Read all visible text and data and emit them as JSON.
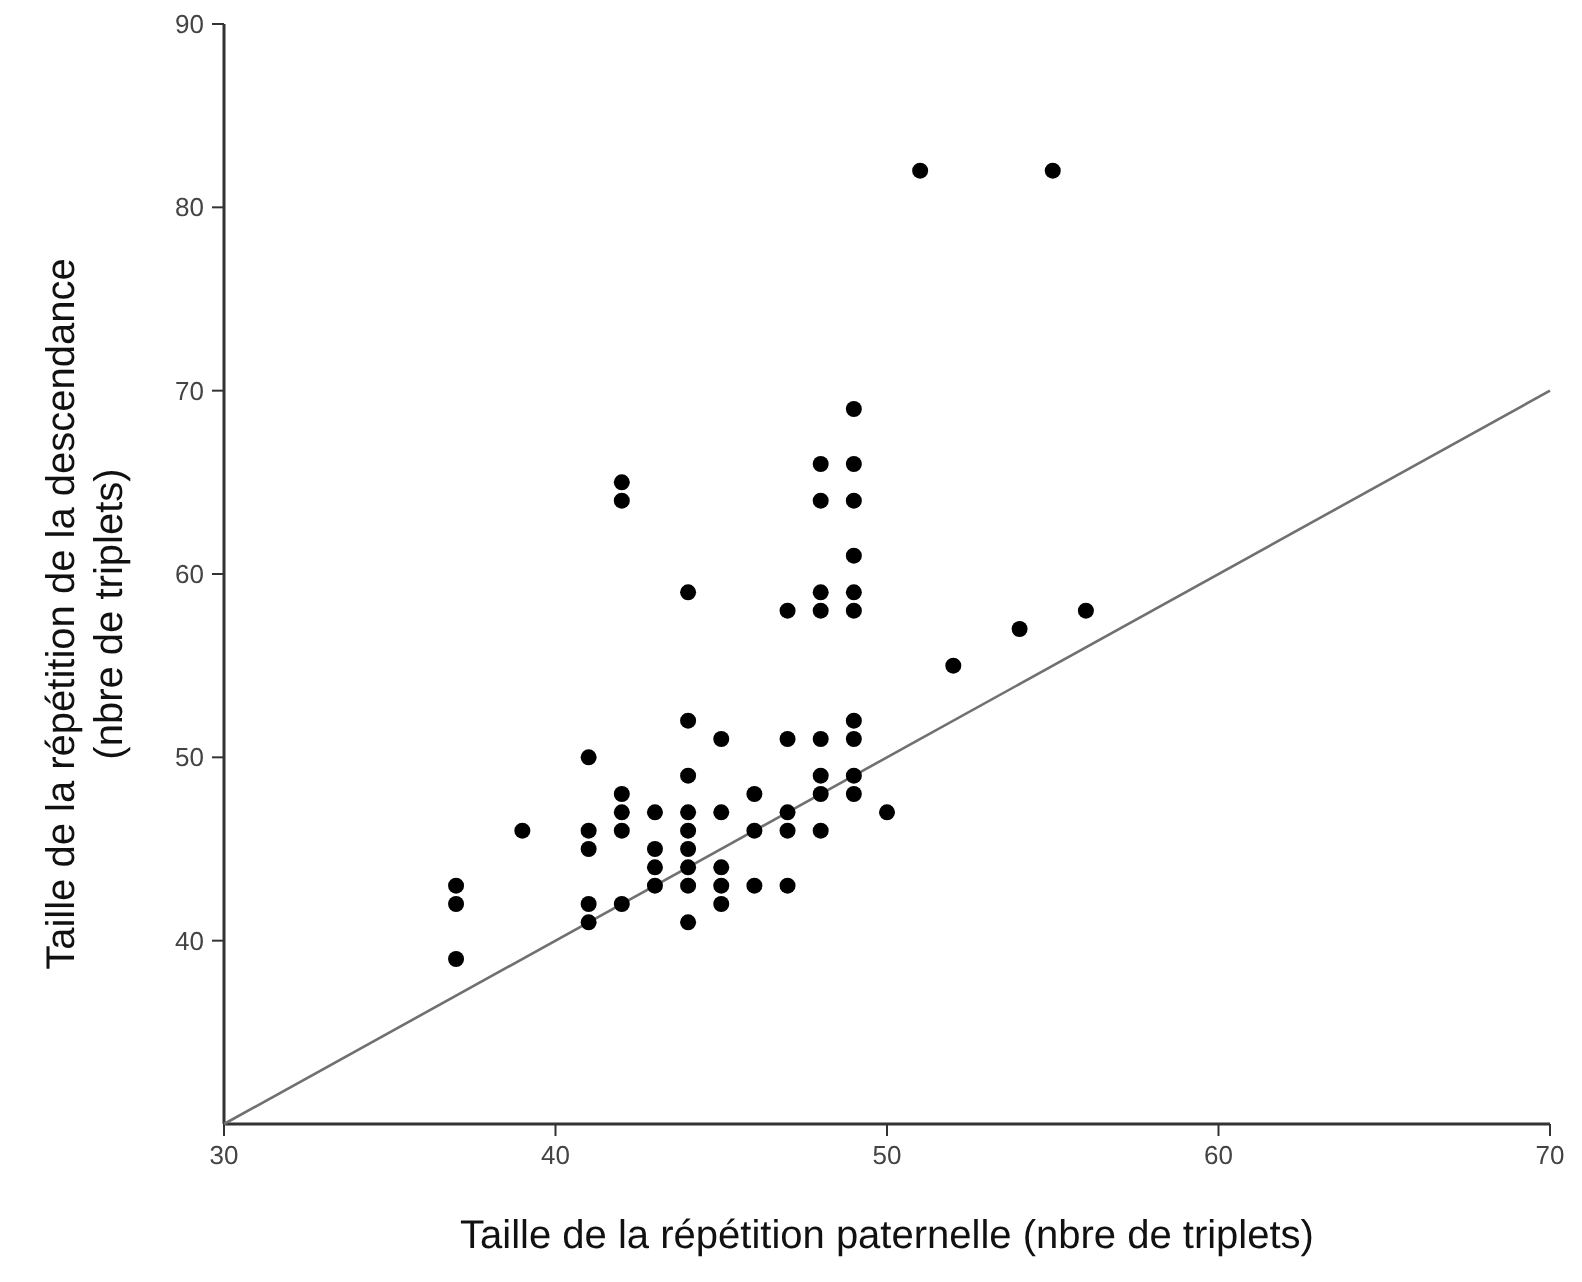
{
  "chart_data": {
    "type": "scatter",
    "xlabel": "Taille de la répétition paternelle (nbre de triplets)",
    "ylabel": "Taille de la répétition de la descendance\n(nbre de triplets)",
    "xlim": [
      30,
      70
    ],
    "ylim": [
      30,
      90
    ],
    "xticks": [
      30,
      40,
      50,
      60,
      70
    ],
    "yticks": [
      40,
      50,
      60,
      70,
      80,
      90
    ],
    "grid": false,
    "series": [
      {
        "color": "#000000",
        "marker": "circle",
        "x": [
          37,
          37,
          37,
          39,
          41,
          41,
          41,
          41,
          41,
          42,
          42,
          42,
          42,
          42,
          42,
          43,
          43,
          43,
          43,
          44,
          44,
          44,
          44,
          44,
          44,
          44,
          44,
          44,
          45,
          45,
          45,
          45,
          45,
          46,
          46,
          46,
          47,
          47,
          47,
          47,
          47,
          48,
          48,
          48,
          48,
          48,
          48,
          48,
          48,
          49,
          49,
          49,
          49,
          49,
          49,
          49,
          49,
          49,
          49,
          50,
          51,
          52,
          54,
          55,
          56
        ],
        "values": [
          43,
          42,
          39,
          46,
          50,
          46,
          45,
          42,
          41,
          65,
          64,
          48,
          47,
          46,
          42,
          47,
          45,
          44,
          43,
          59,
          52,
          49,
          47,
          46,
          45,
          44,
          43,
          41,
          51,
          47,
          44,
          43,
          42,
          48,
          46,
          43,
          58,
          51,
          47,
          46,
          43,
          66,
          64,
          59,
          58,
          51,
          49,
          48,
          46,
          69,
          66,
          64,
          61,
          59,
          58,
          52,
          51,
          49,
          48,
          47,
          82,
          55,
          57,
          82,
          58
        ]
      },
      {
        "type": "line",
        "color": "#707070",
        "marker": "none",
        "line_style": "solid",
        "x": [
          30,
          70
        ],
        "values": [
          30,
          70
        ]
      }
    ]
  }
}
